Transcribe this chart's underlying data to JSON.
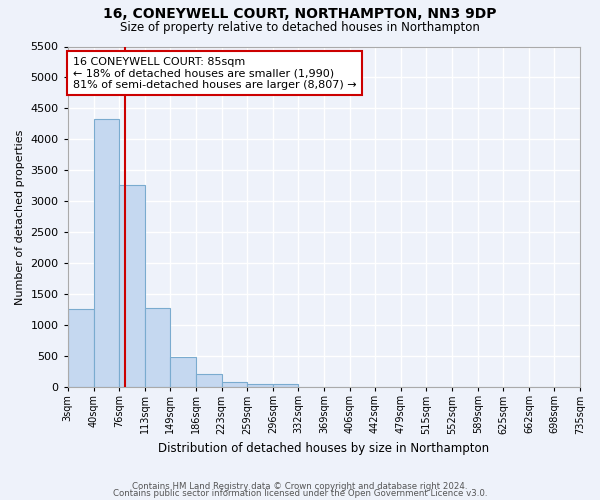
{
  "title": "16, CONEYWELL COURT, NORTHAMPTON, NN3 9DP",
  "subtitle": "Size of property relative to detached houses in Northampton",
  "xlabel": "Distribution of detached houses by size in Northampton",
  "ylabel": "Number of detached properties",
  "footer_line1": "Contains HM Land Registry data © Crown copyright and database right 2024.",
  "footer_line2": "Contains public sector information licensed under the Open Government Licence v3.0.",
  "bin_labels": [
    "3sqm",
    "40sqm",
    "76sqm",
    "113sqm",
    "149sqm",
    "186sqm",
    "223sqm",
    "259sqm",
    "296sqm",
    "332sqm",
    "369sqm",
    "406sqm",
    "442sqm",
    "479sqm",
    "515sqm",
    "552sqm",
    "589sqm",
    "625sqm",
    "662sqm",
    "698sqm",
    "735sqm"
  ],
  "bar_values": [
    1270,
    4330,
    3260,
    1280,
    480,
    210,
    90,
    60,
    50,
    0,
    0,
    0,
    0,
    0,
    0,
    0,
    0,
    0,
    0,
    0
  ],
  "bin_edges": [
    3,
    40,
    76,
    113,
    149,
    186,
    223,
    259,
    296,
    332,
    369,
    406,
    442,
    479,
    515,
    552,
    589,
    625,
    662,
    698,
    735
  ],
  "property_size": 85,
  "red_line_x": 85,
  "ylim": [
    0,
    5500
  ],
  "yticks": [
    0,
    500,
    1000,
    1500,
    2000,
    2500,
    3000,
    3500,
    4000,
    4500,
    5000,
    5500
  ],
  "bar_color": "#c5d8f0",
  "bar_edge_color": "#7aabcf",
  "red_line_color": "#cc0000",
  "annotation_text": "16 CONEYWELL COURT: 85sqm\n← 18% of detached houses are smaller (1,990)\n81% of semi-detached houses are larger (8,807) →",
  "annotation_box_color": "#ffffff",
  "annotation_box_edge": "#cc0000",
  "background_color": "#eef2fa",
  "grid_color": "#ffffff"
}
